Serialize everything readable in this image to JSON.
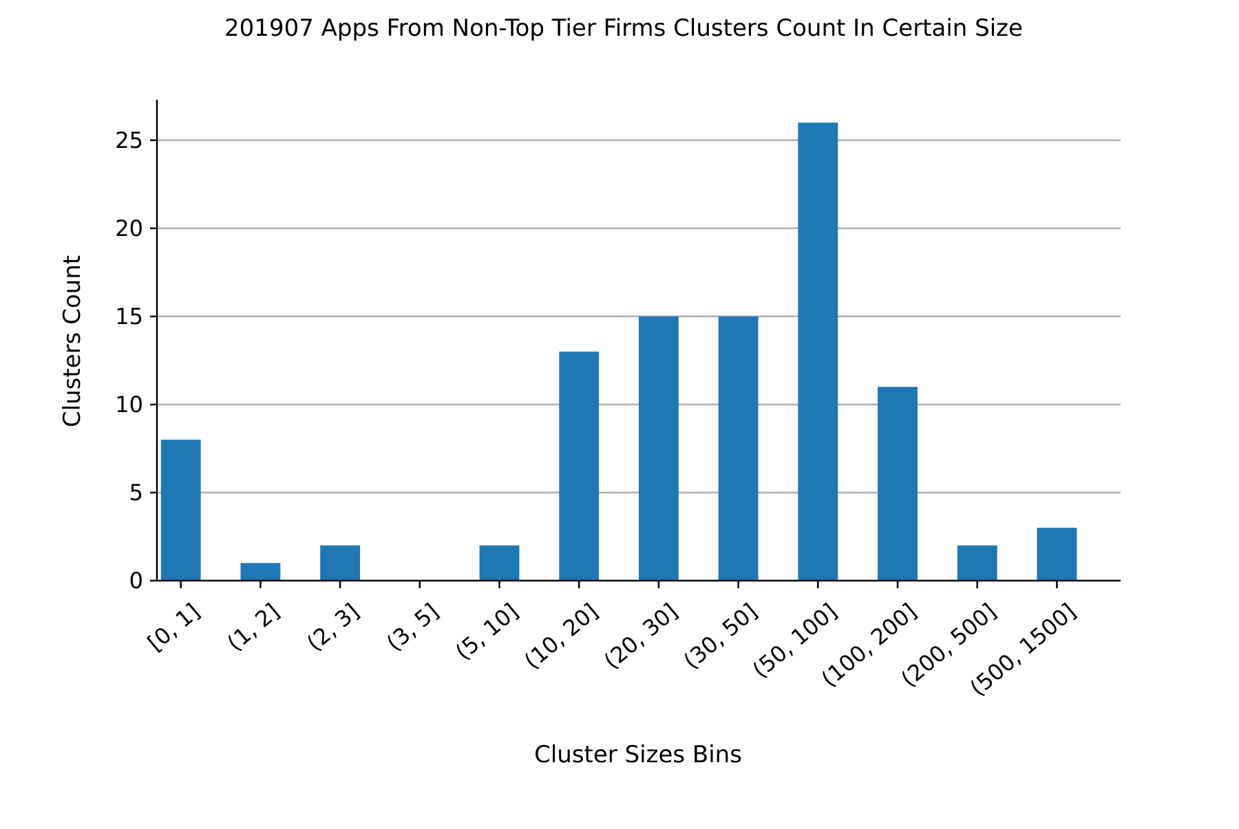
{
  "chart_data": {
    "type": "bar",
    "title": "201907 Apps From Non-Top Tier Firms Clusters Count In Certain Size",
    "xlabel": "Cluster Sizes Bins",
    "ylabel": "Clusters Count",
    "categories": [
      "[0, 1]",
      "(1, 2]",
      "(2, 3]",
      "(3, 5]",
      "(5, 10]",
      "(10, 20]",
      "(20, 30]",
      "(30, 50]",
      "(50, 100]",
      "(100, 200]",
      "(200, 500]",
      "(500, 1500]"
    ],
    "values": [
      8,
      1,
      2,
      0,
      2,
      13,
      15,
      15,
      26,
      11,
      2,
      3
    ],
    "ylim": [
      0,
      27.3
    ],
    "yticks": [
      0,
      5,
      10,
      15,
      20,
      25
    ],
    "grid": "horizontal",
    "bar_color": "#1f77b4",
    "grid_color": "#b0b0b0"
  }
}
